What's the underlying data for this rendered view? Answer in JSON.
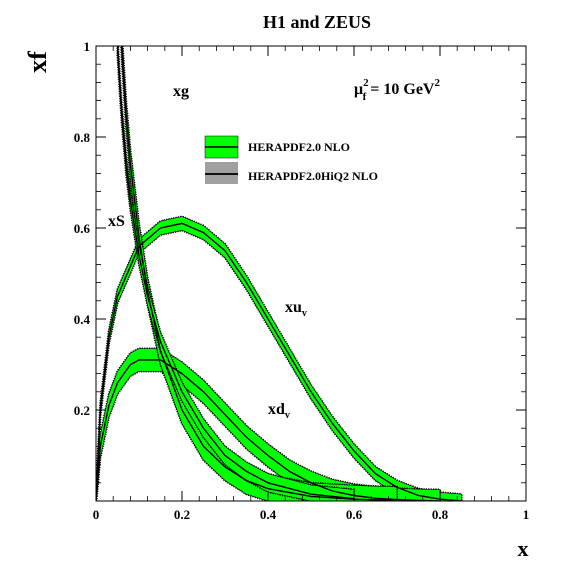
{
  "chart_data": {
    "type": "line",
    "title": "H1 and ZEUS",
    "xlabel": "x",
    "ylabel": "xf",
    "xlim": [
      0,
      1
    ],
    "ylim": [
      0,
      1
    ],
    "x_ticks": [
      "0",
      "0.2",
      "0.4",
      "0.6",
      "0.8",
      "1"
    ],
    "y_ticks": [
      "0.2",
      "0.4",
      "0.6",
      "0.8",
      "1"
    ],
    "scale_label": {
      "base": "μ",
      "sup": "2",
      "sub": "f",
      "rest": " = 10 GeV",
      "unit_sup": "2"
    },
    "legend": [
      {
        "name": "HERAPDF2.0 NLO",
        "style": "band",
        "color": "#00ff00"
      },
      {
        "name": "HERAPDF2.0HiQ2 NLO",
        "style": "hatched",
        "color": "#000000"
      }
    ],
    "legend_placement": "top-center",
    "series_labels": [
      {
        "label": "xg"
      },
      {
        "label": "xS"
      },
      {
        "label": "xu",
        "sub": "v"
      },
      {
        "label": "xd",
        "sub": "v"
      }
    ],
    "series": [
      {
        "name": "xu_v",
        "x": [
          0.001,
          0.01,
          0.03,
          0.05,
          0.1,
          0.15,
          0.2,
          0.25,
          0.3,
          0.35,
          0.4,
          0.45,
          0.5,
          0.55,
          0.6,
          0.65,
          0.7,
          0.75,
          0.8,
          0.85
        ],
        "values": [
          0.02,
          0.2,
          0.36,
          0.45,
          0.56,
          0.6,
          0.61,
          0.59,
          0.55,
          0.48,
          0.4,
          0.32,
          0.24,
          0.17,
          0.11,
          0.06,
          0.03,
          0.012,
          0.004,
          0.0
        ],
        "band": 0.015
      },
      {
        "name": "xd_v",
        "x": [
          0.001,
          0.01,
          0.03,
          0.05,
          0.08,
          0.1,
          0.15,
          0.2,
          0.25,
          0.3,
          0.35,
          0.4,
          0.45,
          0.5,
          0.55,
          0.6,
          0.65,
          0.7,
          0.75,
          0.8
        ],
        "values": [
          0.01,
          0.12,
          0.21,
          0.26,
          0.3,
          0.31,
          0.31,
          0.28,
          0.24,
          0.19,
          0.14,
          0.1,
          0.065,
          0.04,
          0.022,
          0.012,
          0.006,
          0.003,
          0.001,
          0.0
        ],
        "band": 0.025
      },
      {
        "name": "xg",
        "x": [
          0.05,
          0.06,
          0.07,
          0.08,
          0.1,
          0.12,
          0.15,
          0.2,
          0.25,
          0.3,
          0.35,
          0.4,
          0.5,
          0.6,
          0.7
        ],
        "values": [
          1.25,
          1.0,
          0.85,
          0.74,
          0.58,
          0.46,
          0.33,
          0.2,
          0.12,
          0.075,
          0.045,
          0.027,
          0.01,
          0.004,
          0.001
        ],
        "band": 0.03
      },
      {
        "name": "xS",
        "x": [
          0.05,
          0.055,
          0.06,
          0.07,
          0.08,
          0.1,
          0.12,
          0.15,
          0.2,
          0.25,
          0.3,
          0.35,
          0.4,
          0.5,
          0.6
        ],
        "values": [
          1.0,
          0.92,
          0.85,
          0.74,
          0.66,
          0.54,
          0.45,
          0.35,
          0.24,
          0.16,
          0.1,
          0.065,
          0.04,
          0.015,
          0.005
        ],
        "band": 0.02
      }
    ]
  }
}
